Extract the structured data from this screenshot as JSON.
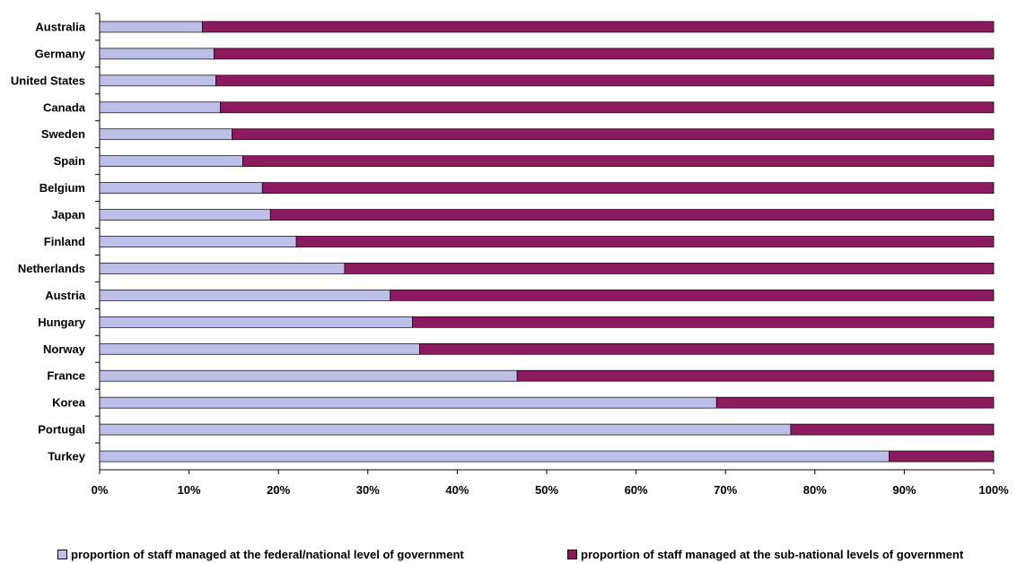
{
  "chart_data": {
    "type": "bar",
    "orientation": "horizontal",
    "stacked": true,
    "categories": [
      "Australia",
      "Germany",
      "United States",
      "Canada",
      "Sweden",
      "Spain",
      "Belgium",
      "Japan",
      "Finland",
      "Netherlands",
      "Austria",
      "Hungary",
      "Norway",
      "France",
      "Korea",
      "Portugal",
      "Turkey"
    ],
    "series": [
      {
        "name": "proportion of staff managed at the federal/national level of government",
        "color": "#bcbfe8",
        "values": [
          11.5,
          12.8,
          13.0,
          13.5,
          14.8,
          16.0,
          18.2,
          19.1,
          22.0,
          27.4,
          32.5,
          35.0,
          35.8,
          46.7,
          69.0,
          77.3,
          88.3
        ]
      },
      {
        "name": "proportion of staff managed at the sub-national levels of government",
        "color": "#8c1a5e",
        "values": [
          88.5,
          87.2,
          87.0,
          86.5,
          85.2,
          84.0,
          81.8,
          80.9,
          78.0,
          72.6,
          67.5,
          65.0,
          64.2,
          53.3,
          31.0,
          22.7,
          11.7
        ]
      }
    ],
    "xlim": [
      0,
      100
    ],
    "xticks": [
      "0%",
      "10%",
      "20%",
      "30%",
      "40%",
      "50%",
      "60%",
      "70%",
      "80%",
      "90%",
      "100%"
    ],
    "grid": false,
    "legend_position": "bottom"
  }
}
